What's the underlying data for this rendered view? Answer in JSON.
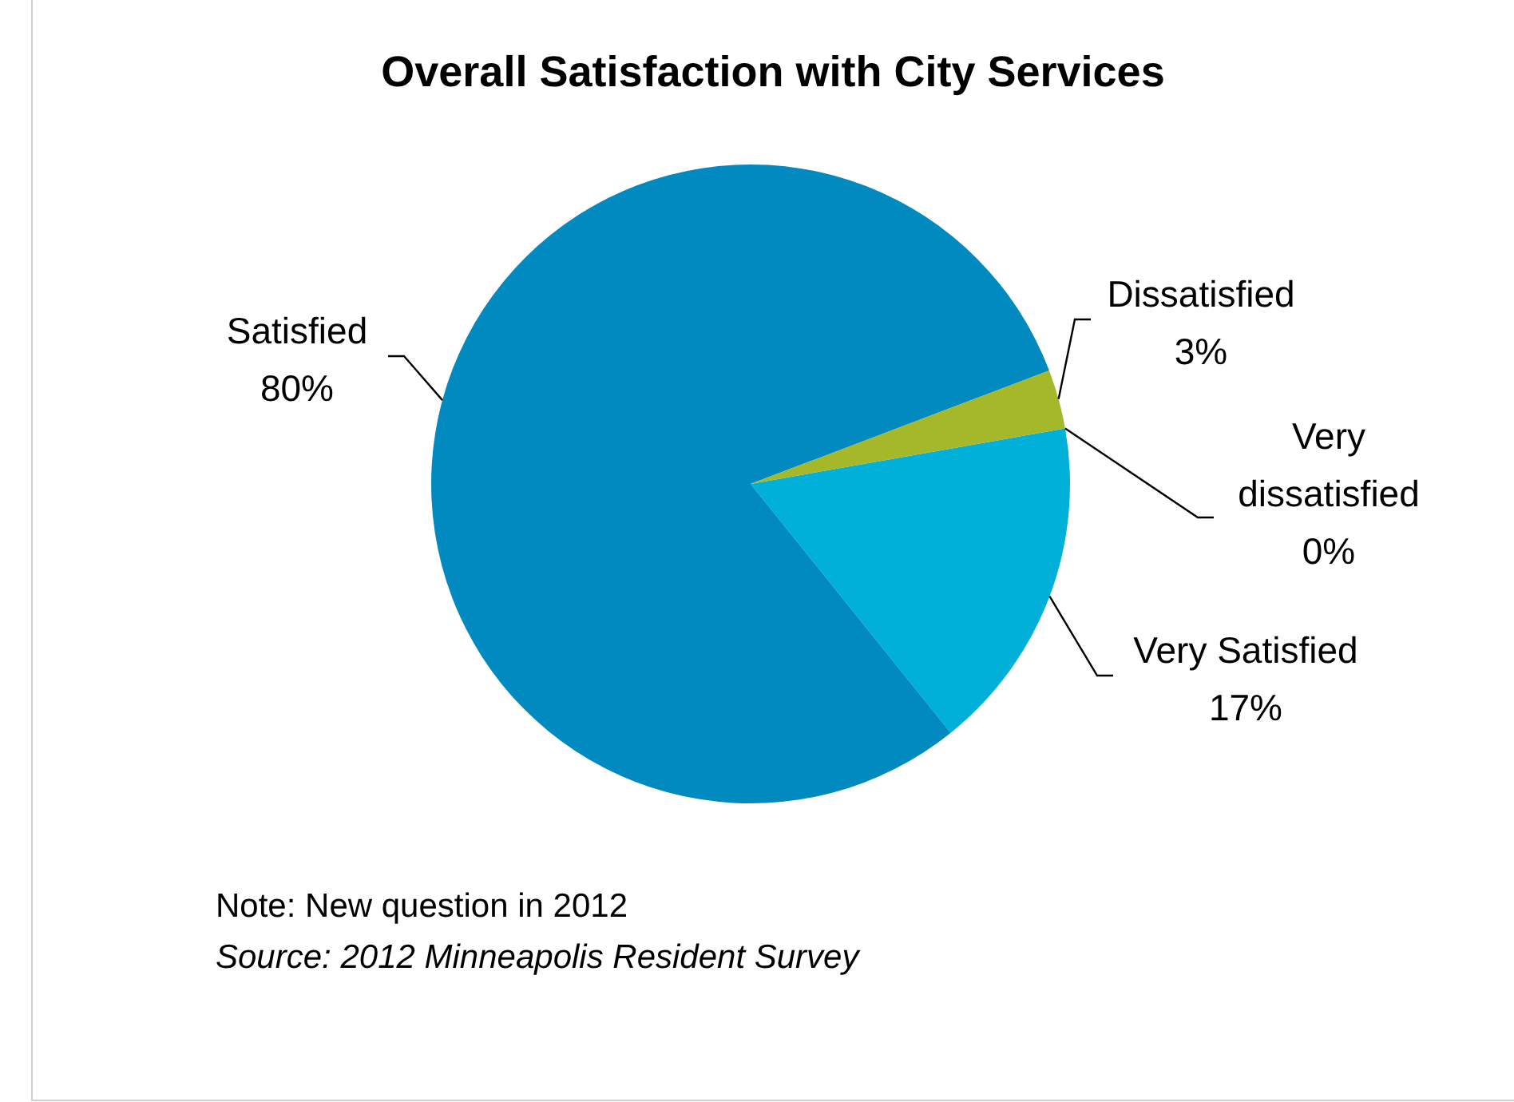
{
  "chart_data": {
    "type": "pie",
    "title": "Overall Satisfaction with City Services",
    "categories": [
      "Very Satisfied",
      "Satisfied",
      "Dissatisfied",
      "Very dissatisfied"
    ],
    "values": [
      17,
      80,
      3,
      0
    ],
    "colors": [
      "#00b0d8",
      "#008ac0",
      "#a5b82a",
      "#1c5f8a"
    ],
    "value_labels": [
      "17%",
      "80%",
      "3%",
      "0%"
    ],
    "annotations": [
      "Note: New question in 2012",
      "Source: 2012 Minneapolis Resident Survey"
    ]
  }
}
